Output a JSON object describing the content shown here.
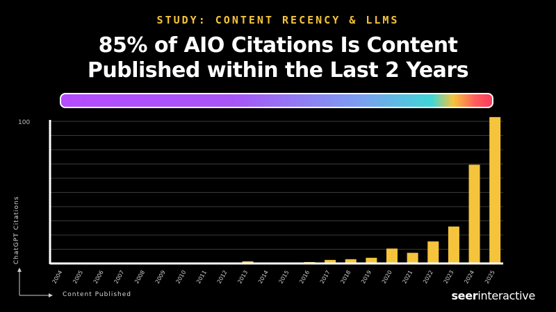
{
  "header": {
    "kicker": "STUDY: CONTENT RECENCY & LLMS",
    "title_line1": "85% of AIO Citations Is Content",
    "title_line2": "Published within the Last 2 Years"
  },
  "brand": {
    "bold": "seer",
    "light": "interactive"
  },
  "colors": {
    "background": "#000000",
    "bar": "#f5c43c",
    "kicker": "#f5c43c",
    "grid": "#3a3a3a",
    "axis": "#ffffff"
  },
  "chart_data": {
    "type": "bar",
    "xlabel": "Content Published",
    "ylabel": "ChatGPT Citations",
    "ylim": [
      0,
      100
    ],
    "y_ticks_shown": [
      100
    ],
    "grid": true,
    "categories": [
      "2004",
      "2005",
      "2006",
      "2007",
      "2008",
      "2009",
      "2010",
      "2011",
      "2012",
      "2013",
      "2014",
      "2015",
      "2016",
      "2017",
      "2018",
      "2019",
      "2020",
      "2021",
      "2022",
      "2023",
      "2024",
      "2025"
    ],
    "values": [
      0,
      0,
      0,
      0,
      0,
      0,
      0,
      0,
      0,
      1.5,
      0,
      0,
      1,
      2.5,
      3,
      4,
      10.5,
      7.5,
      15.5,
      26,
      69.5,
      103
    ]
  }
}
